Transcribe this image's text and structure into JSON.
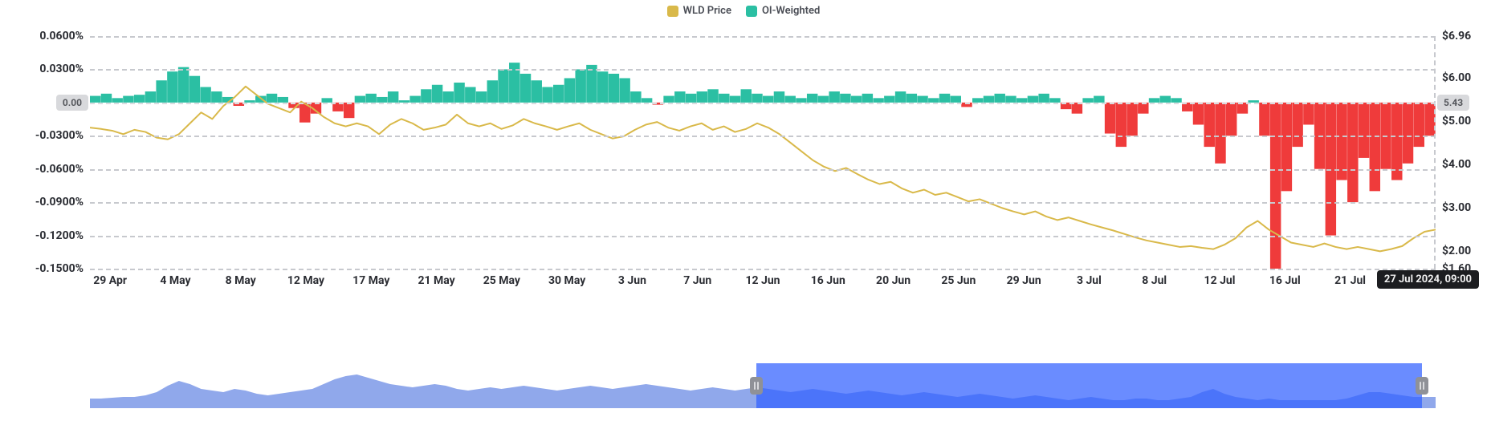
{
  "legend": [
    {
      "label": "WLD Price",
      "color": "#d9b94a"
    },
    {
      "label": "OI-Weighted",
      "color": "#2bbfa3"
    }
  ],
  "left_axis": {
    "label_suffix": "%",
    "min": -0.15,
    "max": 0.06,
    "ticks": [
      {
        "v": 0.06,
        "label": "0.0600%"
      },
      {
        "v": 0.03,
        "label": "0.0300%"
      },
      {
        "v": -0.03,
        "label": "-0.0300%"
      },
      {
        "v": -0.06,
        "label": "-0.0600%"
      },
      {
        "v": -0.09,
        "label": "-0.0900%"
      },
      {
        "v": -0.12,
        "label": "-0.1200%"
      },
      {
        "v": -0.15,
        "label": "-0.1500%"
      }
    ],
    "zero_badge": "0.00"
  },
  "right_axis": {
    "min": 1.6,
    "max": 6.96,
    "ticks": [
      {
        "v": 6.96,
        "label": "$6.96"
      },
      {
        "v": 6.0,
        "label": "$6.00"
      },
      {
        "v": 5.0,
        "label": "$5.00"
      },
      {
        "v": 4.0,
        "label": "$4.00"
      },
      {
        "v": 3.0,
        "label": "$3.00"
      },
      {
        "v": 2.0,
        "label": "$2.00"
      },
      {
        "v": 1.6,
        "label": "$1.60"
      }
    ],
    "crosshair_badge": "5.43"
  },
  "x_ticks": [
    "29 Apr",
    "4 May",
    "8 May",
    "12 May",
    "17 May",
    "21 May",
    "25 May",
    "30 May",
    "3 Jun",
    "7 Jun",
    "12 Jun",
    "16 Jun",
    "20 Jun",
    "25 Jun",
    "29 Jun",
    "3 Jul",
    "8 Jul",
    "12 Jul",
    "16 Jul",
    "21 Jul"
  ],
  "tooltip": "27 Jul 2024, 09:00",
  "colors": {
    "price_line": "#d9b94a",
    "oi_pos": "#2bbfa3",
    "oi_neg": "#ef3b3b",
    "grid": "#c7c9ce",
    "nav_fill": "#7d99e8",
    "nav_mask": "#3c5aff"
  },
  "price_series": [
    4.85,
    4.82,
    4.78,
    4.7,
    4.8,
    4.75,
    4.62,
    4.58,
    4.7,
    4.95,
    5.2,
    5.05,
    5.35,
    5.55,
    5.8,
    5.6,
    5.4,
    5.3,
    5.2,
    5.45,
    5.3,
    5.1,
    4.95,
    4.88,
    4.95,
    4.88,
    4.7,
    4.92,
    5.05,
    4.95,
    4.8,
    4.85,
    4.92,
    5.15,
    4.95,
    4.88,
    4.95,
    4.82,
    4.9,
    5.05,
    4.95,
    4.88,
    4.8,
    4.88,
    4.95,
    4.8,
    4.7,
    4.6,
    4.65,
    4.8,
    4.92,
    4.98,
    4.85,
    4.78,
    4.88,
    4.95,
    4.8,
    4.88,
    4.75,
    4.82,
    4.95,
    4.85,
    4.7,
    4.5,
    4.3,
    4.1,
    3.95,
    3.85,
    3.92,
    3.78,
    3.65,
    3.55,
    3.6,
    3.45,
    3.35,
    3.42,
    3.3,
    3.35,
    3.25,
    3.15,
    3.2,
    3.1,
    3.0,
    2.92,
    2.85,
    2.92,
    2.8,
    2.72,
    2.78,
    2.7,
    2.62,
    2.55,
    2.48,
    2.4,
    2.32,
    2.25,
    2.2,
    2.15,
    2.1,
    2.12,
    2.08,
    2.05,
    2.15,
    2.3,
    2.55,
    2.7,
    2.5,
    2.35,
    2.2,
    2.15,
    2.1,
    2.18,
    2.1,
    2.05,
    2.1,
    2.05,
    2.0,
    2.05,
    2.12,
    2.3,
    2.45,
    2.5
  ],
  "oi_series": [
    0.006,
    0.008,
    0.004,
    0.006,
    0.007,
    0.01,
    0.02,
    0.028,
    0.032,
    0.024,
    0.014,
    0.01,
    0.005,
    -0.003,
    0.002,
    0.006,
    0.008,
    0.005,
    -0.005,
    -0.018,
    -0.01,
    0.004,
    -0.008,
    -0.014,
    0.006,
    0.008,
    0.005,
    0.01,
    0.002,
    0.006,
    0.012,
    0.016,
    0.01,
    0.018,
    0.014,
    0.01,
    0.02,
    0.03,
    0.036,
    0.026,
    0.02,
    0.014,
    0.016,
    0.022,
    0.03,
    0.034,
    0.028,
    0.026,
    0.022,
    0.01,
    0.004,
    -0.002,
    0.006,
    0.01,
    0.008,
    0.01,
    0.012,
    0.008,
    0.006,
    0.012,
    0.008,
    0.006,
    0.01,
    0.006,
    0.004,
    0.008,
    0.006,
    0.01,
    0.008,
    0.006,
    0.008,
    0.004,
    0.006,
    0.01,
    0.008,
    0.006,
    0.004,
    0.008,
    0.006,
    -0.004,
    0.004,
    0.006,
    0.008,
    0.006,
    0.004,
    0.006,
    0.008,
    0.004,
    -0.006,
    -0.01,
    0.004,
    0.006,
    -0.028,
    -0.04,
    -0.03,
    -0.01,
    0.004,
    0.006,
    0.004,
    -0.008,
    -0.02,
    -0.04,
    -0.055,
    -0.03,
    -0.01,
    0.002,
    -0.03,
    -0.15,
    -0.08,
    -0.04,
    -0.02,
    -0.06,
    -0.12,
    -0.07,
    -0.09,
    -0.05,
    -0.08,
    -0.06,
    -0.07,
    -0.055,
    -0.04,
    -0.03
  ],
  "navigator": {
    "series": [
      12,
      12,
      13,
      14,
      14,
      16,
      20,
      28,
      34,
      30,
      24,
      22,
      20,
      24,
      22,
      18,
      16,
      18,
      20,
      22,
      24,
      30,
      36,
      40,
      42,
      38,
      34,
      30,
      28,
      26,
      28,
      30,
      28,
      24,
      22,
      24,
      26,
      24,
      26,
      28,
      26,
      24,
      22,
      24,
      26,
      28,
      26,
      24,
      26,
      28,
      30,
      28,
      26,
      24,
      22,
      24,
      26,
      24,
      22,
      24,
      26,
      24,
      22,
      20,
      22,
      24,
      22,
      20,
      18,
      20,
      22,
      20,
      18,
      16,
      18,
      20,
      18,
      16,
      14,
      16,
      18,
      16,
      14,
      12,
      14,
      16,
      14,
      12,
      10,
      12,
      14,
      12,
      10,
      10,
      12,
      12,
      10,
      10,
      12,
      14,
      20,
      24,
      18,
      14,
      12,
      10,
      12,
      10,
      10,
      10,
      10,
      10,
      10,
      12,
      16,
      20,
      20,
      18,
      16,
      14,
      14,
      14
    ],
    "h": 56,
    "window": {
      "start_pct": 49.5,
      "end_pct": 99.0
    }
  }
}
